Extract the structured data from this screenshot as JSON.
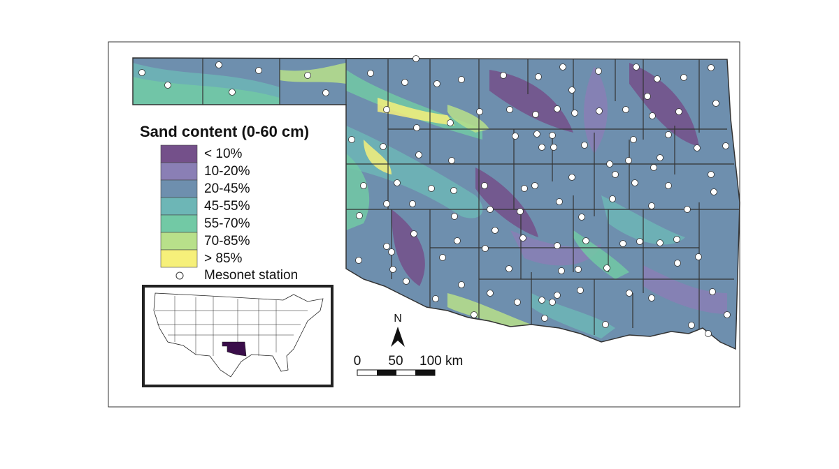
{
  "legend": {
    "title": "Sand content (0-60 cm)",
    "items": [
      {
        "label": "< 10%",
        "color": "#74508a"
      },
      {
        "label": "10-20%",
        "color": "#8a7fb5"
      },
      {
        "label": "20-45%",
        "color": "#6e8fae"
      },
      {
        "label": "45-55%",
        "color": "#6db6b6"
      },
      {
        "label": "55-70%",
        "color": "#72c9a5"
      },
      {
        "label": "70-85%",
        "color": "#b8e08a"
      },
      {
        "label": "> 85%",
        "color": "#f6f07a"
      }
    ],
    "station_label": "Mesonet station"
  },
  "north_arrow": "N",
  "scale_bar": [
    "0",
    "50",
    "100 km"
  ]
}
